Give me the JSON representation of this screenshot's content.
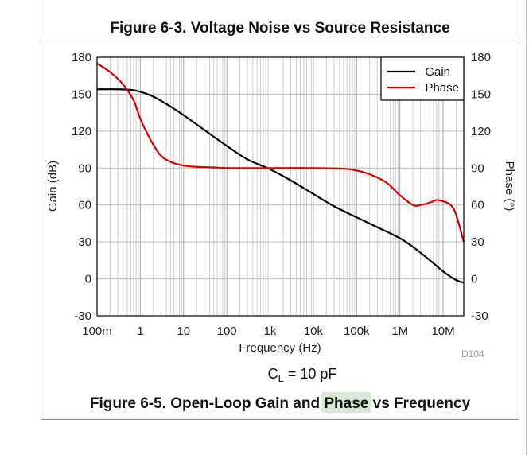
{
  "page": {
    "top_caption": "Figure 6-3. Voltage Noise vs Source Resistance",
    "bottom_caption_prefix": "Figure 6-5. Open-Loop Gain and ",
    "bottom_caption_highlight": "Phase",
    "bottom_caption_suffix": " vs Frequency",
    "highlight_color": "#d6ead3",
    "condition_prefix": "C",
    "condition_subscript": "L",
    "condition_suffix": " = 10 pF",
    "figure_id": "D104"
  },
  "chart_data": {
    "type": "line",
    "xscale": "log",
    "xlabel": "Frequency (Hz)",
    "ylabel": "Gain (dB)",
    "y2label": "Phase (°)",
    "xlim": [
      0.1,
      30000000
    ],
    "ylim": [
      -30,
      180
    ],
    "y2lim": [
      -30,
      180
    ],
    "x_tick_values": [
      0.1,
      1,
      10,
      100,
      1000,
      10000,
      100000,
      1000000,
      10000000
    ],
    "x_tick_labels": [
      "100m",
      "1",
      "10",
      "100",
      "1k",
      "10k",
      "100k",
      "1M",
      "10M"
    ],
    "y_tick_values": [
      -30,
      0,
      30,
      60,
      90,
      120,
      150,
      180
    ],
    "y_tick_labels": [
      "-30",
      "0",
      "30",
      "60",
      "90",
      "120",
      "150",
      "180"
    ],
    "y2_tick_labels": [
      "-30",
      "0",
      "30",
      "60",
      "90",
      "120",
      "150",
      "180"
    ],
    "grid": true,
    "legend_position": "top-right",
    "series": [
      {
        "name": "Gain",
        "color": "#000000",
        "axis": "left",
        "x": [
          0.1,
          0.3,
          0.6,
          1,
          2,
          5,
          10,
          30,
          100,
          300,
          1000,
          3000,
          10000,
          30000,
          100000,
          300000,
          1000000,
          2000000,
          5000000,
          10000000,
          20000000,
          30000000
        ],
        "y": [
          154,
          154,
          153.5,
          152,
          148,
          140,
          133,
          121,
          108,
          97,
          89,
          80,
          69,
          59,
          50,
          42,
          33,
          26,
          15,
          6,
          -1,
          -3
        ]
      },
      {
        "name": "Phase",
        "color": "#d40000",
        "axis": "right",
        "x": [
          0.1,
          0.2,
          0.4,
          0.7,
          1,
          1.5,
          2,
          3,
          5,
          10,
          20,
          50,
          100,
          1000,
          10000,
          50000,
          100000,
          200000,
          500000,
          1000000,
          2000000,
          3000000,
          5000000,
          7000000,
          10000000,
          15000000,
          20000000,
          30000000
        ],
        "y": [
          175,
          168,
          158,
          145,
          130,
          117,
          109,
          100,
          95,
          92,
          91,
          90.5,
          90,
          90,
          90,
          89.5,
          88,
          85,
          78,
          68,
          60,
          60,
          62,
          64,
          63,
          60,
          52,
          30
        ]
      }
    ]
  }
}
